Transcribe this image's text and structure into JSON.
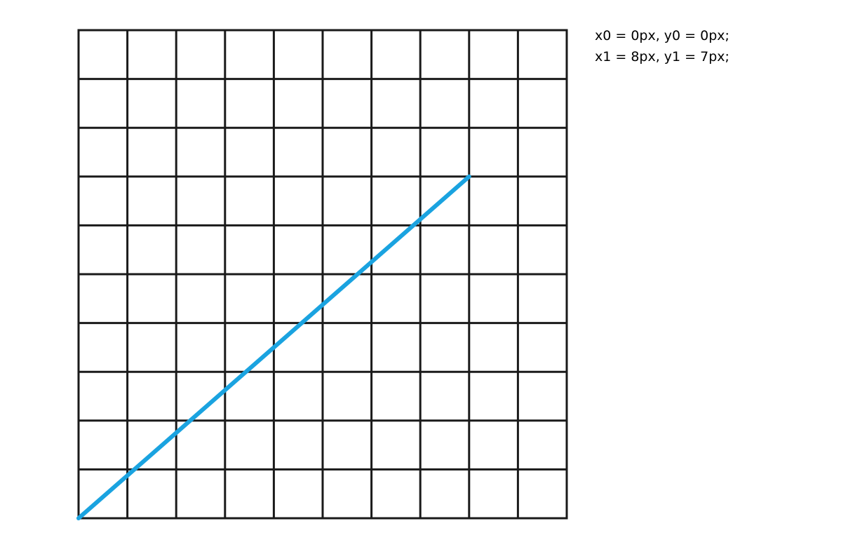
{
  "caption": {
    "start_line": "x0 = 0px, y0 = 0px;",
    "end_line": "x1 = 8px, y1 = 7px;"
  },
  "grid": {
    "columns": 10,
    "rows": 10,
    "line_color": "#1a1a1a"
  },
  "segment": {
    "x0": 0,
    "y0": 0,
    "x1": 8,
    "y1": 7,
    "color": "#1aa3e0"
  }
}
